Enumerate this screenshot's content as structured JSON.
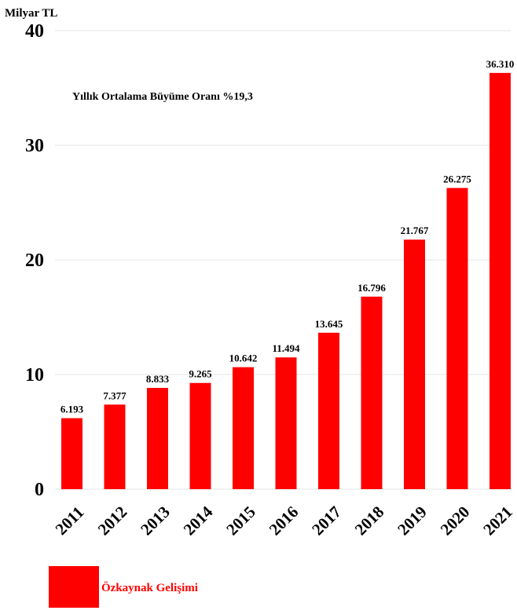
{
  "chart_data": {
    "type": "bar",
    "ylabel": "Milyar TL",
    "annotation": "Yıllık Ortalama Büyüme Oranı %19,3",
    "categories": [
      "2011",
      "2012",
      "2013",
      "2014",
      "2015",
      "2016",
      "2017",
      "2018",
      "2019",
      "2020",
      "2021"
    ],
    "series": [
      {
        "name": "Özkaynak Gelişimi",
        "color": "#ff0000",
        "values": [
          6.193,
          7.377,
          8.833,
          9.265,
          10.642,
          11.494,
          13.645,
          16.796,
          21.767,
          26.275,
          36.31
        ],
        "labels": [
          "6.193",
          "7.377",
          "8.833",
          "9.265",
          "10.642",
          "11.494",
          "13.645",
          "16.796",
          "21.767",
          "26.275",
          "36.310"
        ]
      }
    ],
    "ylim": [
      0,
      40
    ],
    "yticks": [
      0,
      10,
      20,
      30,
      40
    ],
    "grid": true,
    "legend_position": "bottom-left"
  }
}
